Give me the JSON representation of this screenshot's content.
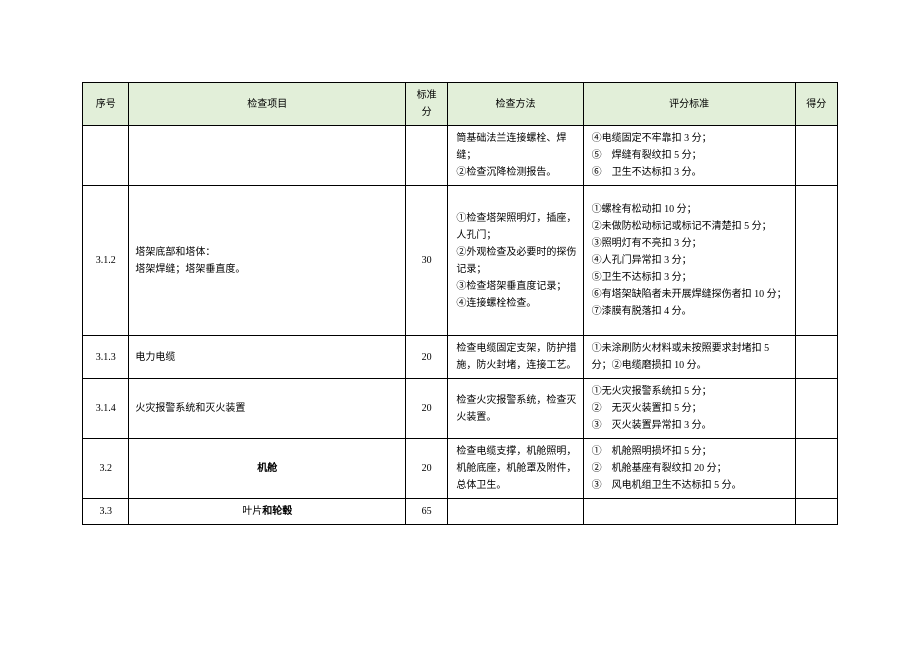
{
  "headers": {
    "num": "序号",
    "item": "检查项目",
    "score": "标准分",
    "method": "检查方法",
    "criteria": "评分标准",
    "result": "得分"
  },
  "rows": [
    {
      "num": "",
      "item": "",
      "score": "",
      "method": "筒基础法兰连接螺栓、焊缝；\n②检查沉降检测报告。",
      "criteria": "④电缆固定不牢靠扣 3 分；\n⑤　焊缝有裂纹扣 5 分；\n⑥　卫生不达标扣 3 分。",
      "result": ""
    },
    {
      "num": "3.1.2",
      "item": "塔架底部和塔体：\n塔架焊缝；塔架垂直度。",
      "score": "30",
      "method": "①检查塔架照明灯，插座，人孔门；\n②外观检查及必要时的探伤记录；\n③检查塔架垂直度记录；\n④连接螺栓检查。",
      "criteria": "①螺栓有松动扣 10 分；\n②未做防松动标记或标记不清楚扣 5 分；\n③照明灯有不亮扣 3 分；\n④人孔门异常扣 3 分；\n⑤卫生不达标扣 3 分；\n⑥有塔架缺陷者未开展焊缝探伤者扣 10 分；\n⑦漆膜有脱落扣 4 分。",
      "result": ""
    },
    {
      "num": "3.1.3",
      "item": "电力电缆",
      "score": "20",
      "method": "检查电缆固定支架，防护措施，防火封堵，连接工艺。",
      "criteria": "①未涂刷防火材料或未按照要求封堵扣 5 分；②电缆磨损扣 10 分。",
      "result": ""
    },
    {
      "num": "3.1.4",
      "item": "火灾报警系统和灭火装置",
      "score": "20",
      "method": "检查火灾报警系统，检查灭火装置。",
      "criteria": "①无火灾报警系统扣 5 分；\n②　无灭火装置扣 5 分；\n③　灭火装置异常扣 3 分。",
      "result": ""
    },
    {
      "num": "3.2",
      "item_bold": "机舱",
      "score": "20",
      "method": "检查电缆支撑，机舱照明，机舱底座，机舱罩及附件，总体卫生。",
      "criteria": "①　机舱照明损坏扣 5 分；\n②　机舱基座有裂纹扣 20 分；\n③　风电机组卫生不达标扣 5 分。",
      "result": ""
    },
    {
      "num": "3.3",
      "item_mixed_prefix": "叶片",
      "item_mixed_bold": "和轮毂",
      "score": "65",
      "method": "",
      "criteria": "",
      "result": ""
    }
  ]
}
